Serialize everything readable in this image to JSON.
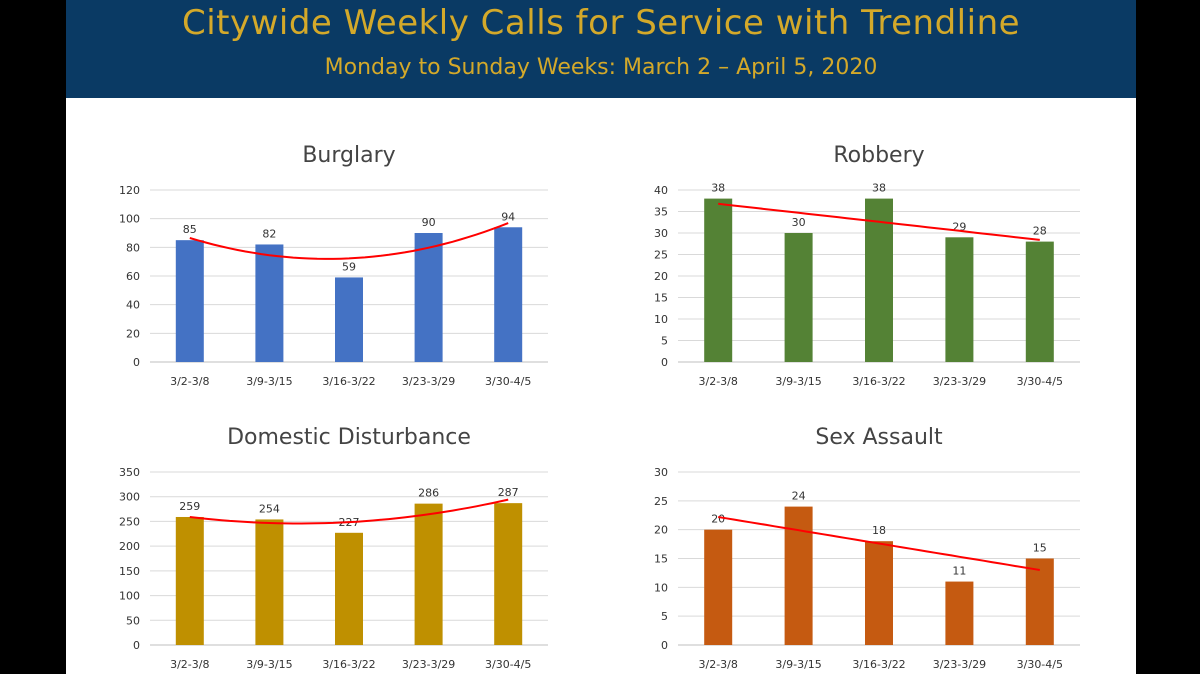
{
  "header": {
    "title": "Citywide Weekly Calls for Service with Trendline",
    "subtitle": "Monday to Sunday Weeks:  March 2 – April 5, 2020"
  },
  "colors": {
    "header_bg": "#0a3a64",
    "header_text": "#d4a92a",
    "trendline": "#ff0000"
  },
  "chart_data": [
    {
      "type": "bar",
      "id": "burglary",
      "title": "Burglary",
      "categories": [
        "3/2-3/8",
        "3/9-3/15",
        "3/16-3/22",
        "3/23-3/29",
        "3/30-4/5"
      ],
      "values": [
        85,
        82,
        59,
        90,
        94
      ],
      "ylim": [
        0,
        120
      ],
      "yticks": [
        0,
        20,
        40,
        60,
        80,
        100,
        120
      ],
      "color": "#4472c4",
      "trendline": "polynomial",
      "grid": true
    },
    {
      "type": "bar",
      "id": "robbery",
      "title": "Robbery",
      "categories": [
        "3/2-3/8",
        "3/9-3/15",
        "3/16-3/22",
        "3/23-3/29",
        "3/30-4/5"
      ],
      "values": [
        38,
        30,
        38,
        29,
        28
      ],
      "ylim": [
        0,
        40
      ],
      "yticks": [
        0,
        5,
        10,
        15,
        20,
        25,
        30,
        35,
        40
      ],
      "color": "#548235",
      "trendline": "linear",
      "grid": true
    },
    {
      "type": "bar",
      "id": "domestic",
      "title": "Domestic Disturbance",
      "categories": [
        "3/2-3/8",
        "3/9-3/15",
        "3/16-3/22",
        "3/23-3/29",
        "3/30-4/5"
      ],
      "values": [
        259,
        254,
        227,
        286,
        287
      ],
      "ylim": [
        0,
        350
      ],
      "yticks": [
        0,
        50,
        100,
        150,
        200,
        250,
        300,
        350
      ],
      "color": "#bf9000",
      "trendline": "polynomial",
      "grid": true
    },
    {
      "type": "bar",
      "id": "sexassault",
      "title": "Sex Assault",
      "categories": [
        "3/2-3/8",
        "3/9-3/15",
        "3/16-3/22",
        "3/23-3/29",
        "3/30-4/5"
      ],
      "values": [
        20,
        24,
        18,
        11,
        15
      ],
      "ylim": [
        0,
        30
      ],
      "yticks": [
        0,
        5,
        10,
        15,
        20,
        25,
        30
      ],
      "color": "#c55a11",
      "trendline": "linear",
      "grid": true
    }
  ]
}
